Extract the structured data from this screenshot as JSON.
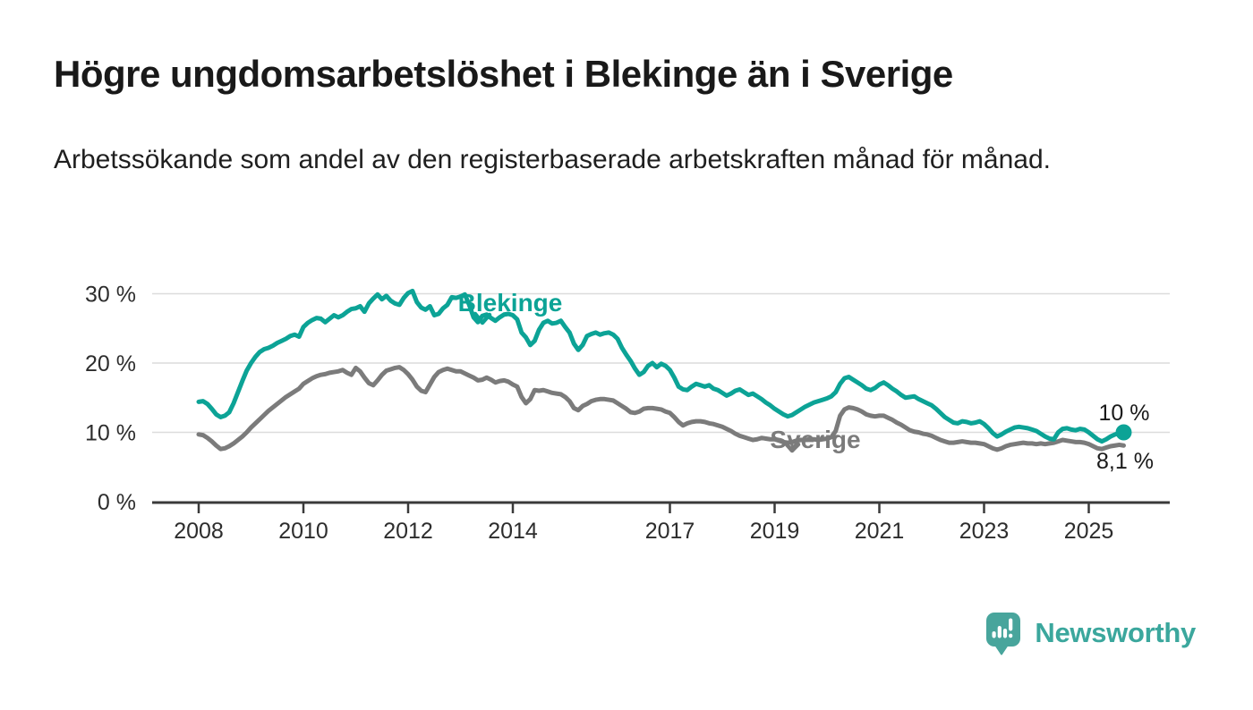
{
  "chart_data": {
    "type": "line",
    "title": "Högre ungdomsarbetslöshet i Blekinge än i Sverige",
    "subtitle": "Arbetssökande som andel av den registerbaserade arbetskraften månad för månad.",
    "unit": "%",
    "x_start_year": 2008,
    "points_per_year": 12,
    "x_ticks": [
      2008,
      2010,
      2012,
      2014,
      2017,
      2019,
      2021,
      2023,
      2025
    ],
    "y_ticks": [
      0,
      10,
      20,
      30
    ],
    "y_tick_labels": [
      "0 %",
      "10 %",
      "20 %",
      "30 %"
    ],
    "ylim": [
      0,
      33
    ],
    "grid": "horizontal",
    "legend": "inline-labels",
    "series": [
      {
        "name": "Sverige",
        "color": "#7b7b7b",
        "end_label": "8,1 %",
        "end_value": 8.1,
        "end_dot": false,
        "values": [
          9.7,
          9.6,
          9.2,
          8.7,
          8.1,
          7.6,
          7.7,
          8.0,
          8.4,
          8.9,
          9.4,
          10.0,
          10.7,
          11.3,
          11.9,
          12.5,
          13.1,
          13.6,
          14.1,
          14.6,
          15.1,
          15.5,
          15.9,
          16.3,
          17.0,
          17.4,
          17.8,
          18.1,
          18.3,
          18.4,
          18.6,
          18.7,
          18.8,
          19.0,
          18.6,
          18.3,
          19.3,
          18.8,
          17.9,
          17.1,
          16.8,
          17.5,
          18.3,
          18.9,
          19.1,
          19.3,
          19.4,
          19.0,
          18.4,
          17.6,
          16.6,
          16.0,
          15.8,
          16.9,
          18.0,
          18.7,
          19.0,
          19.2,
          19.0,
          18.8,
          18.8,
          18.5,
          18.2,
          17.9,
          17.5,
          17.6,
          17.9,
          17.6,
          17.2,
          17.4,
          17.5,
          17.3,
          16.9,
          16.6,
          15.1,
          14.2,
          14.8,
          16.1,
          16.0,
          16.1,
          15.9,
          15.7,
          15.6,
          15.5,
          15.1,
          14.5,
          13.5,
          13.2,
          13.8,
          14.1,
          14.5,
          14.7,
          14.8,
          14.8,
          14.7,
          14.6,
          14.2,
          13.8,
          13.4,
          12.9,
          12.8,
          13.0,
          13.4,
          13.5,
          13.5,
          13.4,
          13.3,
          13.0,
          12.8,
          12.2,
          11.5,
          11.0,
          11.3,
          11.5,
          11.6,
          11.6,
          11.5,
          11.3,
          11.2,
          11.0,
          10.8,
          10.5,
          10.2,
          9.8,
          9.5,
          9.3,
          9.1,
          8.9,
          9.0,
          9.2,
          9.1,
          9.0,
          9.0,
          8.8,
          8.6,
          8.5,
          8.6,
          8.8,
          8.9,
          8.9,
          9.0,
          9.0,
          8.9,
          9.0,
          9.1,
          9.3,
          10.2,
          12.4,
          13.3,
          13.6,
          13.5,
          13.3,
          13.0,
          12.6,
          12.4,
          12.3,
          12.4,
          12.4,
          12.1,
          11.8,
          11.4,
          11.1,
          10.7,
          10.3,
          10.1,
          10.0,
          9.8,
          9.7,
          9.5,
          9.2,
          8.9,
          8.7,
          8.5,
          8.5,
          8.6,
          8.7,
          8.6,
          8.5,
          8.5,
          8.4,
          8.3,
          8.0,
          7.7,
          7.5,
          7.7,
          8.0,
          8.2,
          8.3,
          8.4,
          8.5,
          8.4,
          8.4,
          8.3,
          8.4,
          8.3,
          8.4,
          8.5,
          8.7,
          8.9,
          8.8,
          8.7,
          8.6,
          8.6,
          8.5,
          8.3,
          8.0,
          7.7,
          7.6,
          7.8,
          8.0,
          8.1,
          8.2,
          8.1
        ]
      },
      {
        "name": "Blekinge",
        "color": "#0CA396",
        "end_label": "10 %",
        "end_value": 10,
        "end_dot": true,
        "values": [
          14.4,
          14.5,
          14.1,
          13.4,
          12.6,
          12.2,
          12.4,
          12.9,
          14.2,
          15.8,
          17.4,
          18.9,
          20.0,
          20.9,
          21.6,
          22.0,
          22.2,
          22.5,
          22.9,
          23.2,
          23.5,
          23.9,
          24.1,
          23.8,
          25.2,
          25.8,
          26.2,
          26.5,
          26.4,
          25.9,
          26.4,
          26.9,
          26.6,
          26.9,
          27.4,
          27.8,
          27.9,
          28.2,
          27.4,
          28.6,
          29.3,
          29.9,
          29.2,
          29.7,
          29.0,
          28.6,
          28.4,
          29.4,
          30.1,
          30.4,
          28.8,
          28.0,
          27.7,
          28.2,
          26.9,
          27.1,
          27.9,
          28.4,
          29.5,
          29.4,
          29.6,
          29.9,
          28.4,
          26.6,
          25.9,
          26.8,
          27.0,
          26.5,
          26.1,
          26.6,
          27.0,
          27.1,
          26.9,
          26.3,
          24.4,
          23.7,
          22.6,
          23.2,
          24.8,
          25.8,
          26.1,
          25.7,
          25.8,
          26.1,
          25.2,
          24.4,
          22.8,
          21.9,
          22.6,
          23.9,
          24.2,
          24.4,
          24.1,
          24.3,
          24.4,
          24.1,
          23.5,
          22.2,
          21.2,
          20.3,
          19.2,
          18.3,
          18.7,
          19.6,
          20.0,
          19.4,
          19.9,
          19.6,
          19.0,
          17.9,
          16.6,
          16.2,
          16.1,
          16.6,
          17.0,
          16.8,
          16.6,
          16.8,
          16.3,
          16.1,
          15.7,
          15.3,
          15.6,
          16.0,
          16.2,
          15.8,
          15.4,
          15.6,
          15.2,
          14.8,
          14.3,
          13.9,
          13.4,
          13.0,
          12.6,
          12.3,
          12.5,
          12.9,
          13.3,
          13.7,
          14.0,
          14.3,
          14.5,
          14.7,
          14.9,
          15.2,
          15.8,
          17.0,
          17.8,
          18.0,
          17.6,
          17.2,
          16.8,
          16.3,
          16.1,
          16.4,
          16.9,
          17.2,
          16.8,
          16.3,
          15.9,
          15.4,
          15.0,
          15.1,
          15.2,
          14.8,
          14.5,
          14.2,
          13.9,
          13.4,
          12.8,
          12.2,
          11.8,
          11.4,
          11.3,
          11.6,
          11.5,
          11.3,
          11.4,
          11.6,
          11.2,
          10.6,
          9.9,
          9.4,
          9.7,
          10.1,
          10.4,
          10.7,
          10.8,
          10.7,
          10.6,
          10.4,
          10.2,
          9.8,
          9.4,
          9.1,
          9.0,
          10.0,
          10.5,
          10.6,
          10.4,
          10.3,
          10.5,
          10.4,
          10.0,
          9.5,
          9.0,
          8.7,
          9.0,
          9.4,
          9.7,
          9.9,
          10.0
        ]
      }
    ],
    "colors": {
      "gridline": "#dcdcdc",
      "axis": "#3a3a3a",
      "tick_label": "#2d2d2d"
    }
  },
  "footer": {
    "brand": "Newsworthy",
    "brand_color": "#3BA79D",
    "icon_color": "#48A59C",
    "icon": "newsworthy-speech-bubble-bar-chart-icon"
  }
}
